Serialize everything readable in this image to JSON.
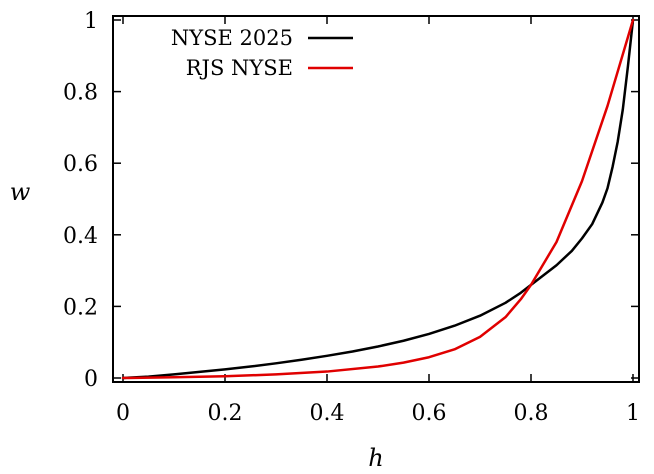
{
  "chart_data": {
    "type": "line",
    "title": "",
    "xlabel": "h",
    "ylabel": "w",
    "xlim": [
      0,
      1
    ],
    "ylim": [
      0,
      1
    ],
    "grid": false,
    "legend_position": "top-left",
    "xticks": [
      "0",
      "0.2",
      "0.4",
      "0.6",
      "0.8",
      "1"
    ],
    "yticks": [
      "0",
      "0.2",
      "0.4",
      "0.6",
      "0.8",
      "1"
    ],
    "series": [
      {
        "name": "NYSE 2025",
        "color": "#000000",
        "x": [
          0,
          0.05,
          0.1,
          0.15,
          0.2,
          0.25,
          0.3,
          0.35,
          0.4,
          0.45,
          0.5,
          0.55,
          0.6,
          0.65,
          0.7,
          0.75,
          0.78,
          0.8,
          0.85,
          0.88,
          0.9,
          0.92,
          0.94,
          0.95,
          0.96,
          0.97,
          0.98,
          0.99,
          1.0
        ],
        "y": [
          0,
          0.004,
          0.01,
          0.017,
          0.024,
          0.032,
          0.041,
          0.051,
          0.062,
          0.074,
          0.088,
          0.104,
          0.123,
          0.146,
          0.174,
          0.21,
          0.238,
          0.26,
          0.315,
          0.355,
          0.39,
          0.43,
          0.49,
          0.53,
          0.59,
          0.66,
          0.75,
          0.87,
          1.0
        ]
      },
      {
        "name": "RJS NYSE",
        "color": "#e00000",
        "x": [
          0,
          0.1,
          0.2,
          0.3,
          0.4,
          0.5,
          0.55,
          0.6,
          0.65,
          0.7,
          0.75,
          0.78,
          0.8,
          0.85,
          0.9,
          0.95,
          1.0
        ],
        "y": [
          0,
          0.002,
          0.005,
          0.01,
          0.018,
          0.032,
          0.043,
          0.058,
          0.08,
          0.115,
          0.17,
          0.22,
          0.26,
          0.38,
          0.55,
          0.76,
          1.0
        ]
      }
    ]
  }
}
